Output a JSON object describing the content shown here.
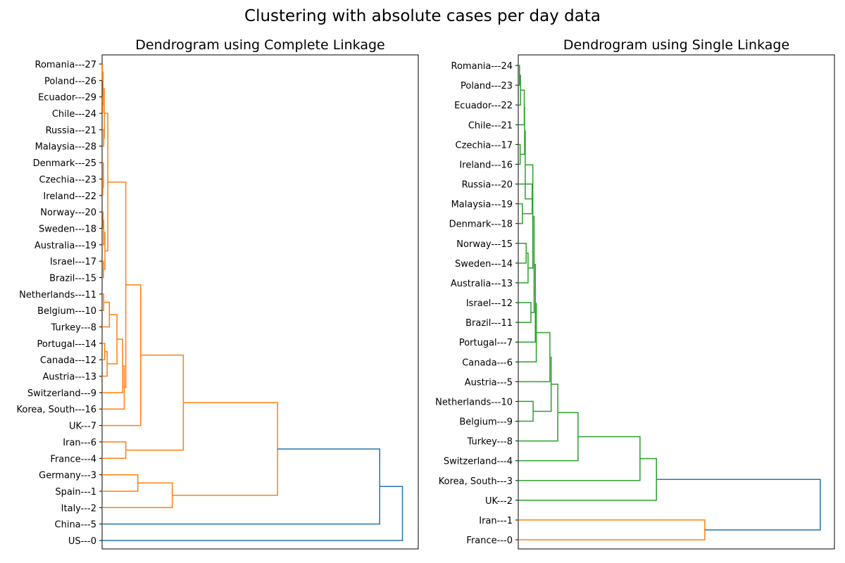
{
  "figure_title": "Clustering with absolute cases per day data",
  "chart_data": [
    {
      "type": "dendrogram",
      "title": "Dendrogram using Complete Linkage",
      "orientation": "horizontal",
      "xlim": [
        0,
        1.0
      ],
      "leaves": [
        "US---0",
        "China---5",
        "Italy---2",
        "Spain---1",
        "Germany---3",
        "France---4",
        "Iran---6",
        "UK---7",
        "Korea, South---16",
        "Switzerland---9",
        "Austria---13",
        "Canada---12",
        "Portugal---14",
        "Turkey---8",
        "Belgium---10",
        "Netherlands---11",
        "Brazil---15",
        "Israel---17",
        "Australia---19",
        "Sweden---18",
        "Norway---20",
        "Ireland---22",
        "Czechia---23",
        "Denmark---25",
        "Malaysia---28",
        "Russia---21",
        "Chile---24",
        "Ecuador---29",
        "Poland---26",
        "Romania---27"
      ],
      "merges": [
        {
          "a": "Romania---27",
          "b": "Poland---26",
          "height": 0.001,
          "color": "#ff7f0e"
        },
        {
          "a": "Ecuador---29",
          "b": "Chile---24",
          "height": 0.002,
          "color": "#ff7f0e"
        },
        {
          "a": "Romania---27",
          "b": "Ecuador---29",
          "height": 0.003,
          "color": "#ff7f0e"
        },
        {
          "a": "Czechia---23",
          "b": "Ireland---22",
          "height": 0.002,
          "color": "#ff7f0e"
        },
        {
          "a": "Denmark---25",
          "b": "Czechia---23",
          "height": 0.004,
          "color": "#ff7f0e"
        },
        {
          "a": "Russia---21",
          "b": "Malaysia---28",
          "height": 0.005,
          "color": "#ff7f0e"
        },
        {
          "a": "Romania---27",
          "b": "Russia---21",
          "height": 0.007,
          "color": "#ff7f0e"
        },
        {
          "a": "Sweden---18",
          "b": "Norway---20",
          "height": 0.003,
          "color": "#ff7f0e"
        },
        {
          "a": "Australia---19",
          "b": "Sweden---18",
          "height": 0.005,
          "color": "#ff7f0e"
        },
        {
          "a": "Israel---17",
          "b": "Brazil---15",
          "height": 0.004,
          "color": "#ff7f0e"
        },
        {
          "a": "Australia---19",
          "b": "Israel---17",
          "height": 0.009,
          "color": "#ff7f0e"
        },
        {
          "a": "Romania---27",
          "b": "Australia---19",
          "height": 0.018,
          "color": "#ff7f0e"
        },
        {
          "a": "Netherlands---11",
          "b": "Belgium---10",
          "height": 0.005,
          "color": "#ff7f0e"
        },
        {
          "a": "Netherlands---11",
          "b": "Turkey---8",
          "height": 0.023,
          "color": "#ff7f0e"
        },
        {
          "a": "Portugal---14",
          "b": "Canada---12",
          "height": 0.008,
          "color": "#ff7f0e"
        },
        {
          "a": "Portugal---14",
          "b": "Austria---13",
          "height": 0.016,
          "color": "#ff7f0e"
        },
        {
          "a": "Netherlands---11",
          "b": "Portugal---14",
          "height": 0.047,
          "color": "#ff7f0e"
        },
        {
          "a": "Netherlands---11",
          "b": "Switzerland---9",
          "height": 0.065,
          "color": "#ff7f0e"
        },
        {
          "a": "Netherlands---11",
          "b": "Korea, South---16",
          "height": 0.07,
          "color": "#ff7f0e"
        },
        {
          "a": "Romania---27",
          "b": "Netherlands---11",
          "height": 0.075,
          "color": "#ff7f0e"
        },
        {
          "a": "Romania---27",
          "b": "UK---7",
          "height": 0.122,
          "color": "#ff7f0e"
        },
        {
          "a": "Iran---6",
          "b": "France---4",
          "height": 0.075,
          "color": "#ff7f0e"
        },
        {
          "a": "Romania---27",
          "b": "Iran---6",
          "height": 0.257,
          "color": "#ff7f0e"
        },
        {
          "a": "Germany---3",
          "b": "Spain---1",
          "height": 0.113,
          "color": "#ff7f0e"
        },
        {
          "a": "Germany---3",
          "b": "Italy---2",
          "height": 0.222,
          "color": "#ff7f0e"
        },
        {
          "a": "Romania---27",
          "b": "Germany---3",
          "height": 0.555,
          "color": "#ff7f0e"
        },
        {
          "a": "Romania---27",
          "b": "China---5",
          "height": 0.878,
          "color": "#1f77b4"
        },
        {
          "a": "Romania---27",
          "b": "US---0",
          "height": 0.95,
          "color": "#1f77b4"
        }
      ]
    },
    {
      "type": "dendrogram",
      "title": "Dendrogram using Single Linkage",
      "orientation": "horizontal",
      "xlim": [
        0,
        1.0
      ],
      "leaves": [
        "France---0",
        "Iran---1",
        "UK---2",
        "Korea, South---3",
        "Switzerland---4",
        "Turkey---8",
        "Belgium---9",
        "Netherlands---10",
        "Austria---5",
        "Canada---6",
        "Portugal---7",
        "Brazil---11",
        "Israel---12",
        "Australia---13",
        "Sweden---14",
        "Norway---15",
        "Denmark---18",
        "Malaysia---19",
        "Russia---20",
        "Ireland---16",
        "Czechia---17",
        "Chile---21",
        "Ecuador---22",
        "Poland---23",
        "Romania---24"
      ],
      "merges": [
        {
          "a": "Romania---24",
          "b": "Poland---23",
          "height": 0.004,
          "color": "#2ca02c"
        },
        {
          "a": "Romania---24",
          "b": "Ecuador---22",
          "height": 0.007,
          "color": "#2ca02c"
        },
        {
          "a": "Romania---24",
          "b": "Chile---21",
          "height": 0.019,
          "color": "#2ca02c"
        },
        {
          "a": "Czechia---17",
          "b": "Ireland---16",
          "height": 0.006,
          "color": "#2ca02c"
        },
        {
          "a": "Romania---24",
          "b": "Czechia---17",
          "height": 0.02,
          "color": "#2ca02c"
        },
        {
          "a": "Malaysia---19",
          "b": "Denmark---18",
          "height": 0.013,
          "color": "#2ca02c"
        },
        {
          "a": "Russia---20",
          "b": "Malaysia---19",
          "height": 0.044,
          "color": "#2ca02c"
        },
        {
          "a": "Romania---24",
          "b": "Russia---20",
          "height": 0.022,
          "color": "#2ca02c"
        },
        {
          "a": "Norway---15",
          "b": "Sweden---14",
          "height": 0.025,
          "color": "#2ca02c"
        },
        {
          "a": "Norway---15",
          "b": "Australia---13",
          "height": 0.031,
          "color": "#2ca02c"
        },
        {
          "a": "Romania---24",
          "b": "Norway---15",
          "height": 0.046,
          "color": "#2ca02c"
        },
        {
          "a": "Israel---12",
          "b": "Brazil---11",
          "height": 0.04,
          "color": "#2ca02c"
        },
        {
          "a": "Romania---24",
          "b": "Israel---12",
          "height": 0.05,
          "color": "#2ca02c"
        },
        {
          "a": "Romania---24",
          "b": "Portugal---7",
          "height": 0.054,
          "color": "#2ca02c"
        },
        {
          "a": "Romania---24",
          "b": "Canada---6",
          "height": 0.057,
          "color": "#2ca02c"
        },
        {
          "a": "Netherlands---10",
          "b": "Belgium---9",
          "height": 0.047,
          "color": "#2ca02c"
        },
        {
          "a": "Romania---24",
          "b": "Austria---5",
          "height": 0.1,
          "color": "#2ca02c"
        },
        {
          "a": "Romania---24",
          "b": "Netherlands---10",
          "height": 0.104,
          "color": "#2ca02c"
        },
        {
          "a": "Romania---24",
          "b": "Turkey---8",
          "height": 0.125,
          "color": "#2ca02c"
        },
        {
          "a": "Romania---24",
          "b": "Switzerland---4",
          "height": 0.189,
          "color": "#2ca02c"
        },
        {
          "a": "Romania---24",
          "b": "Korea, South---3",
          "height": 0.385,
          "color": "#2ca02c"
        },
        {
          "a": "Romania---24",
          "b": "UK---2",
          "height": 0.437,
          "color": "#2ca02c"
        },
        {
          "a": "Iran---1",
          "b": "France---0",
          "height": 0.59,
          "color": "#ff7f0e"
        },
        {
          "a": "Romania---24",
          "b": "Iran---1",
          "height": 0.955,
          "color": "#1f77b4"
        }
      ]
    }
  ]
}
